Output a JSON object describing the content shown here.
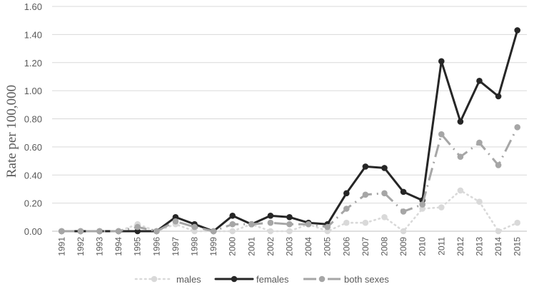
{
  "chart_data": {
    "type": "line",
    "title": "",
    "xlabel": "",
    "ylabel": "Rate per 100,000",
    "ylim": [
      0,
      1.6
    ],
    "yticks": [
      "0.00",
      "0.20",
      "0.40",
      "0.60",
      "0.80",
      "1.00",
      "1.20",
      "1.40",
      "1.60"
    ],
    "grid": "horizontal",
    "legend_position": "bottom",
    "categories": [
      "1991",
      "1992",
      "1993",
      "1994",
      "1995",
      "1996",
      "1997",
      "1998",
      "1999",
      "2000",
      "2001",
      "2002",
      "2003",
      "2004",
      "2005",
      "2006",
      "2007",
      "2008",
      "2009",
      "2010",
      "2011",
      "2012",
      "2013",
      "2014",
      "2015"
    ],
    "series": [
      {
        "name": "males",
        "color": "#d9d9d9",
        "line_style": "dotted",
        "values": [
          0,
          0,
          0,
          0,
          0.05,
          0,
          0.05,
          0,
          0,
          0,
          0.05,
          0,
          0,
          0.05,
          0,
          0.06,
          0.06,
          0.1,
          0,
          0.16,
          0.17,
          0.29,
          0.21,
          0,
          0.06
        ]
      },
      {
        "name": "females",
        "color": "#262626",
        "line_style": "solid",
        "values": [
          0,
          0,
          0,
          0,
          0,
          0,
          0.1,
          0.05,
          0,
          0.11,
          0.05,
          0.11,
          0.1,
          0.06,
          0.05,
          0.27,
          0.46,
          0.45,
          0.28,
          0.22,
          1.21,
          0.78,
          1.07,
          0.96,
          1.43
        ]
      },
      {
        "name": "both sexes",
        "color": "#a6a6a6",
        "line_style": "dashdot",
        "values": [
          0,
          0,
          0,
          0,
          0.03,
          0,
          0.07,
          0.03,
          0,
          0.05,
          0.05,
          0.06,
          0.05,
          0.05,
          0.03,
          0.16,
          0.26,
          0.27,
          0.14,
          0.19,
          0.69,
          0.53,
          0.63,
          0.47,
          0.74
        ]
      }
    ]
  }
}
